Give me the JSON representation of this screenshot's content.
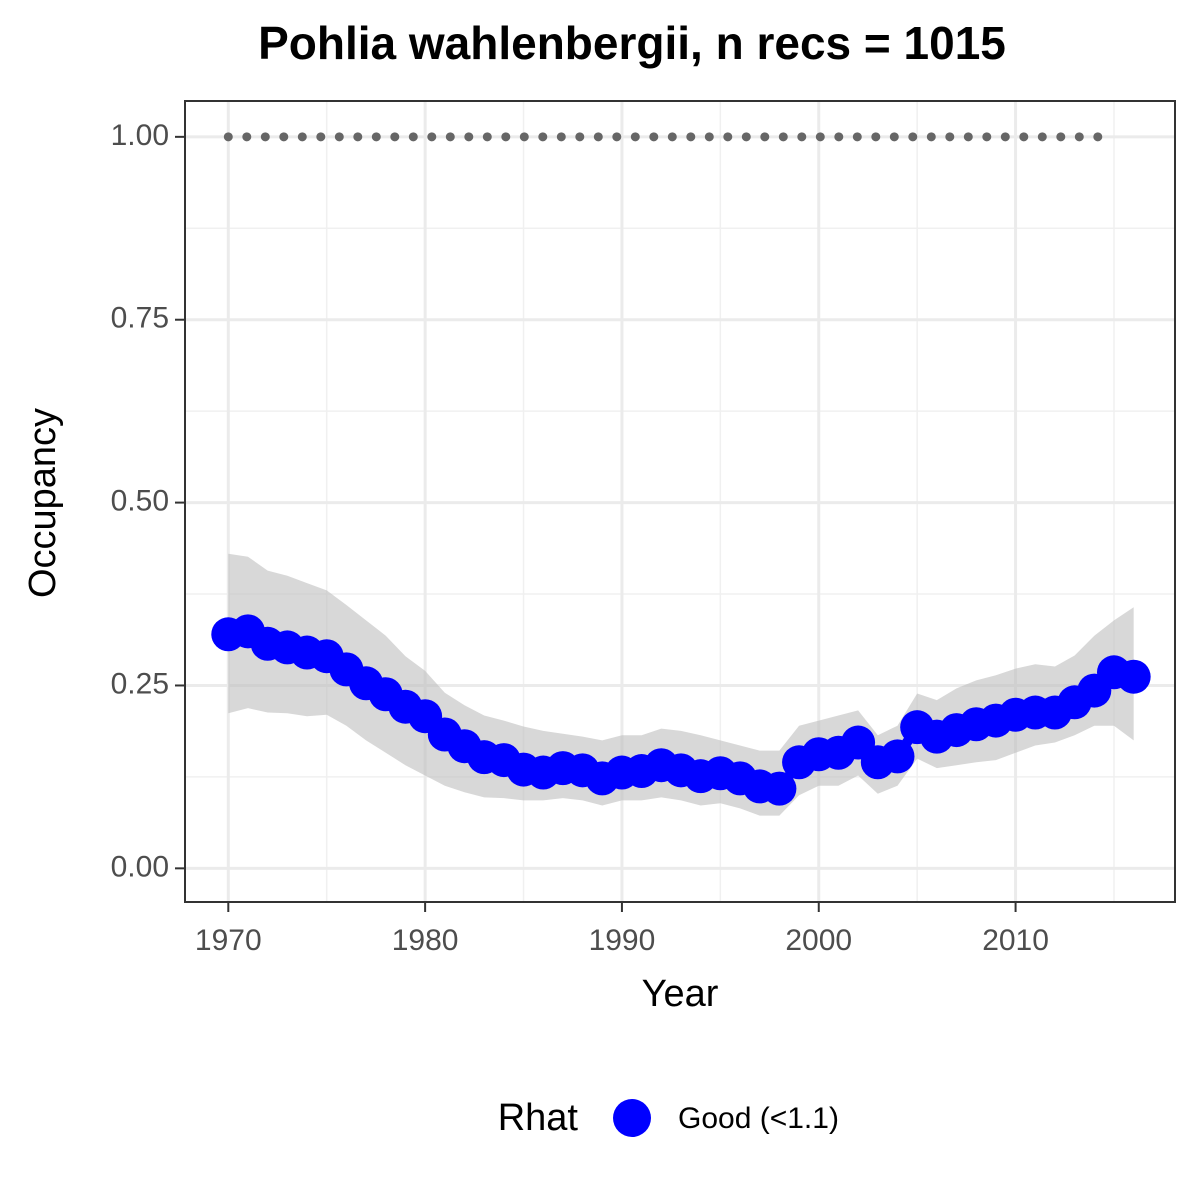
{
  "chart_data": {
    "type": "line",
    "title": "Pohlia wahlenbergii, n recs = 1015",
    "x_label": "Year",
    "y_label": "Occupancy",
    "x": [
      1970,
      1971,
      1972,
      1973,
      1974,
      1975,
      1976,
      1977,
      1978,
      1979,
      1980,
      1981,
      1982,
      1983,
      1984,
      1985,
      1986,
      1987,
      1988,
      1989,
      1990,
      1991,
      1992,
      1993,
      1994,
      1995,
      1996,
      1997,
      1998,
      1999,
      2000,
      2001,
      2002,
      2003,
      2004,
      2005,
      2006,
      2007,
      2008,
      2009,
      2010,
      2011,
      2012,
      2013,
      2014,
      2015,
      2016
    ],
    "series": [
      {
        "name": "Good (<1.1)",
        "color": "#0000ff",
        "values": [
          0.32,
          0.324,
          0.307,
          0.302,
          0.295,
          0.29,
          0.272,
          0.253,
          0.238,
          0.221,
          0.208,
          0.183,
          0.167,
          0.152,
          0.148,
          0.135,
          0.131,
          0.137,
          0.134,
          0.123,
          0.131,
          0.133,
          0.141,
          0.134,
          0.126,
          0.13,
          0.123,
          0.112,
          0.109,
          0.145,
          0.156,
          0.158,
          0.172,
          0.145,
          0.153,
          0.193,
          0.18,
          0.189,
          0.197,
          0.202,
          0.21,
          0.213,
          0.213,
          0.227,
          0.243,
          0.268,
          0.262
        ],
        "upper": [
          0.43,
          0.426,
          0.407,
          0.4,
          0.39,
          0.38,
          0.36,
          0.339,
          0.318,
          0.29,
          0.27,
          0.24,
          0.223,
          0.209,
          0.202,
          0.194,
          0.188,
          0.184,
          0.18,
          0.175,
          0.182,
          0.182,
          0.191,
          0.188,
          0.182,
          0.175,
          0.168,
          0.161,
          0.161,
          0.195,
          0.202,
          0.209,
          0.216,
          0.182,
          0.195,
          0.239,
          0.23,
          0.246,
          0.257,
          0.264,
          0.273,
          0.279,
          0.276,
          0.291,
          0.318,
          0.339,
          0.357
        ],
        "lower": [
          0.212,
          0.219,
          0.213,
          0.212,
          0.208,
          0.21,
          0.195,
          0.175,
          0.158,
          0.141,
          0.127,
          0.113,
          0.104,
          0.097,
          0.096,
          0.093,
          0.093,
          0.096,
          0.093,
          0.086,
          0.093,
          0.093,
          0.097,
          0.093,
          0.086,
          0.089,
          0.082,
          0.072,
          0.072,
          0.1,
          0.113,
          0.113,
          0.127,
          0.102,
          0.113,
          0.15,
          0.137,
          0.141,
          0.145,
          0.148,
          0.158,
          0.168,
          0.172,
          0.182,
          0.195,
          0.195,
          0.175
        ]
      }
    ],
    "ribbon_color": "#bebebe",
    "hline": {
      "value": 1,
      "x": [
        1970,
        2015
      ],
      "color": "#666666"
    },
    "legend_title": "Rhat",
    "legend": "bottom",
    "xlim": [
      1967.8,
      2018.1
    ],
    "xticks": [
      1970,
      1980,
      1990,
      2000,
      2010
    ],
    "minor_xticks": [
      1975,
      1985,
      1995,
      2005,
      2015
    ],
    "ylim": [
      -0.046,
      1.049
    ],
    "yticks": [
      {
        "value": 0,
        "label": "0.00"
      },
      {
        "value": 0.25,
        "label": "0.25"
      },
      {
        "value": 0.5,
        "label": "0.50"
      },
      {
        "value": 0.75,
        "label": "0.75"
      },
      {
        "value": 1,
        "label": "1.00"
      }
    ],
    "minor_yticks": [
      0.125,
      0.375,
      0.625,
      0.875
    ],
    "grid": true
  }
}
